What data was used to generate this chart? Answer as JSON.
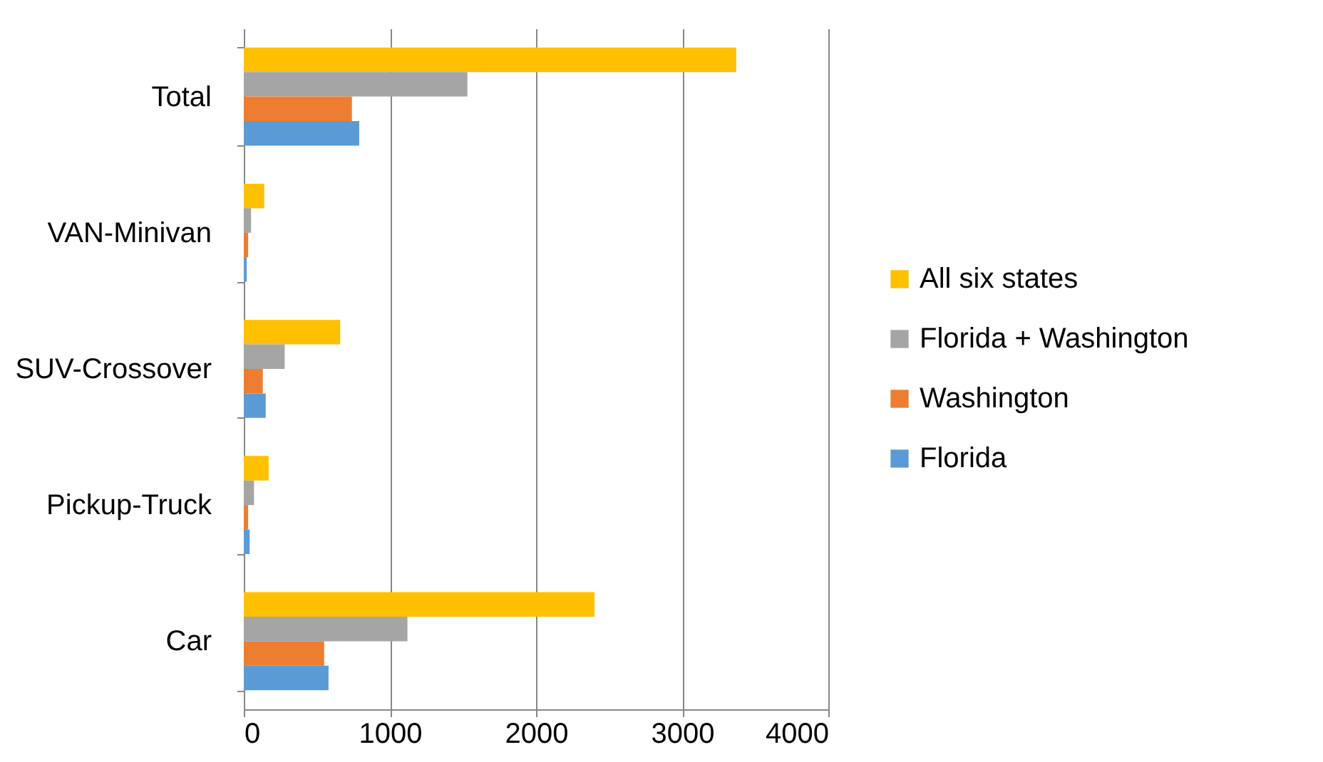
{
  "chart_data": {
    "type": "bar",
    "orientation": "horizontal",
    "categories": [
      "Total",
      "VAN-Minivan",
      "SUV-Crossover",
      "Pickup-Truck",
      "Car"
    ],
    "series": [
      {
        "name": "All six states",
        "color": "#ffc000",
        "values": [
          3370,
          140,
          660,
          170,
          2400
        ]
      },
      {
        "name": "Florida + Washington",
        "color": "#a5a5a5",
        "values": [
          1530,
          50,
          280,
          70,
          1120
        ]
      },
      {
        "name": "Washington",
        "color": "#ed7d31",
        "values": [
          740,
          30,
          130,
          30,
          550
        ]
      },
      {
        "name": "Florida",
        "color": "#5b9bd5",
        "values": [
          790,
          20,
          150,
          40,
          580
        ]
      }
    ],
    "xlim": [
      0,
      4000
    ],
    "xticks": [
      0,
      1000,
      2000,
      3000,
      4000
    ],
    "grid": "x",
    "legend": "right"
  }
}
